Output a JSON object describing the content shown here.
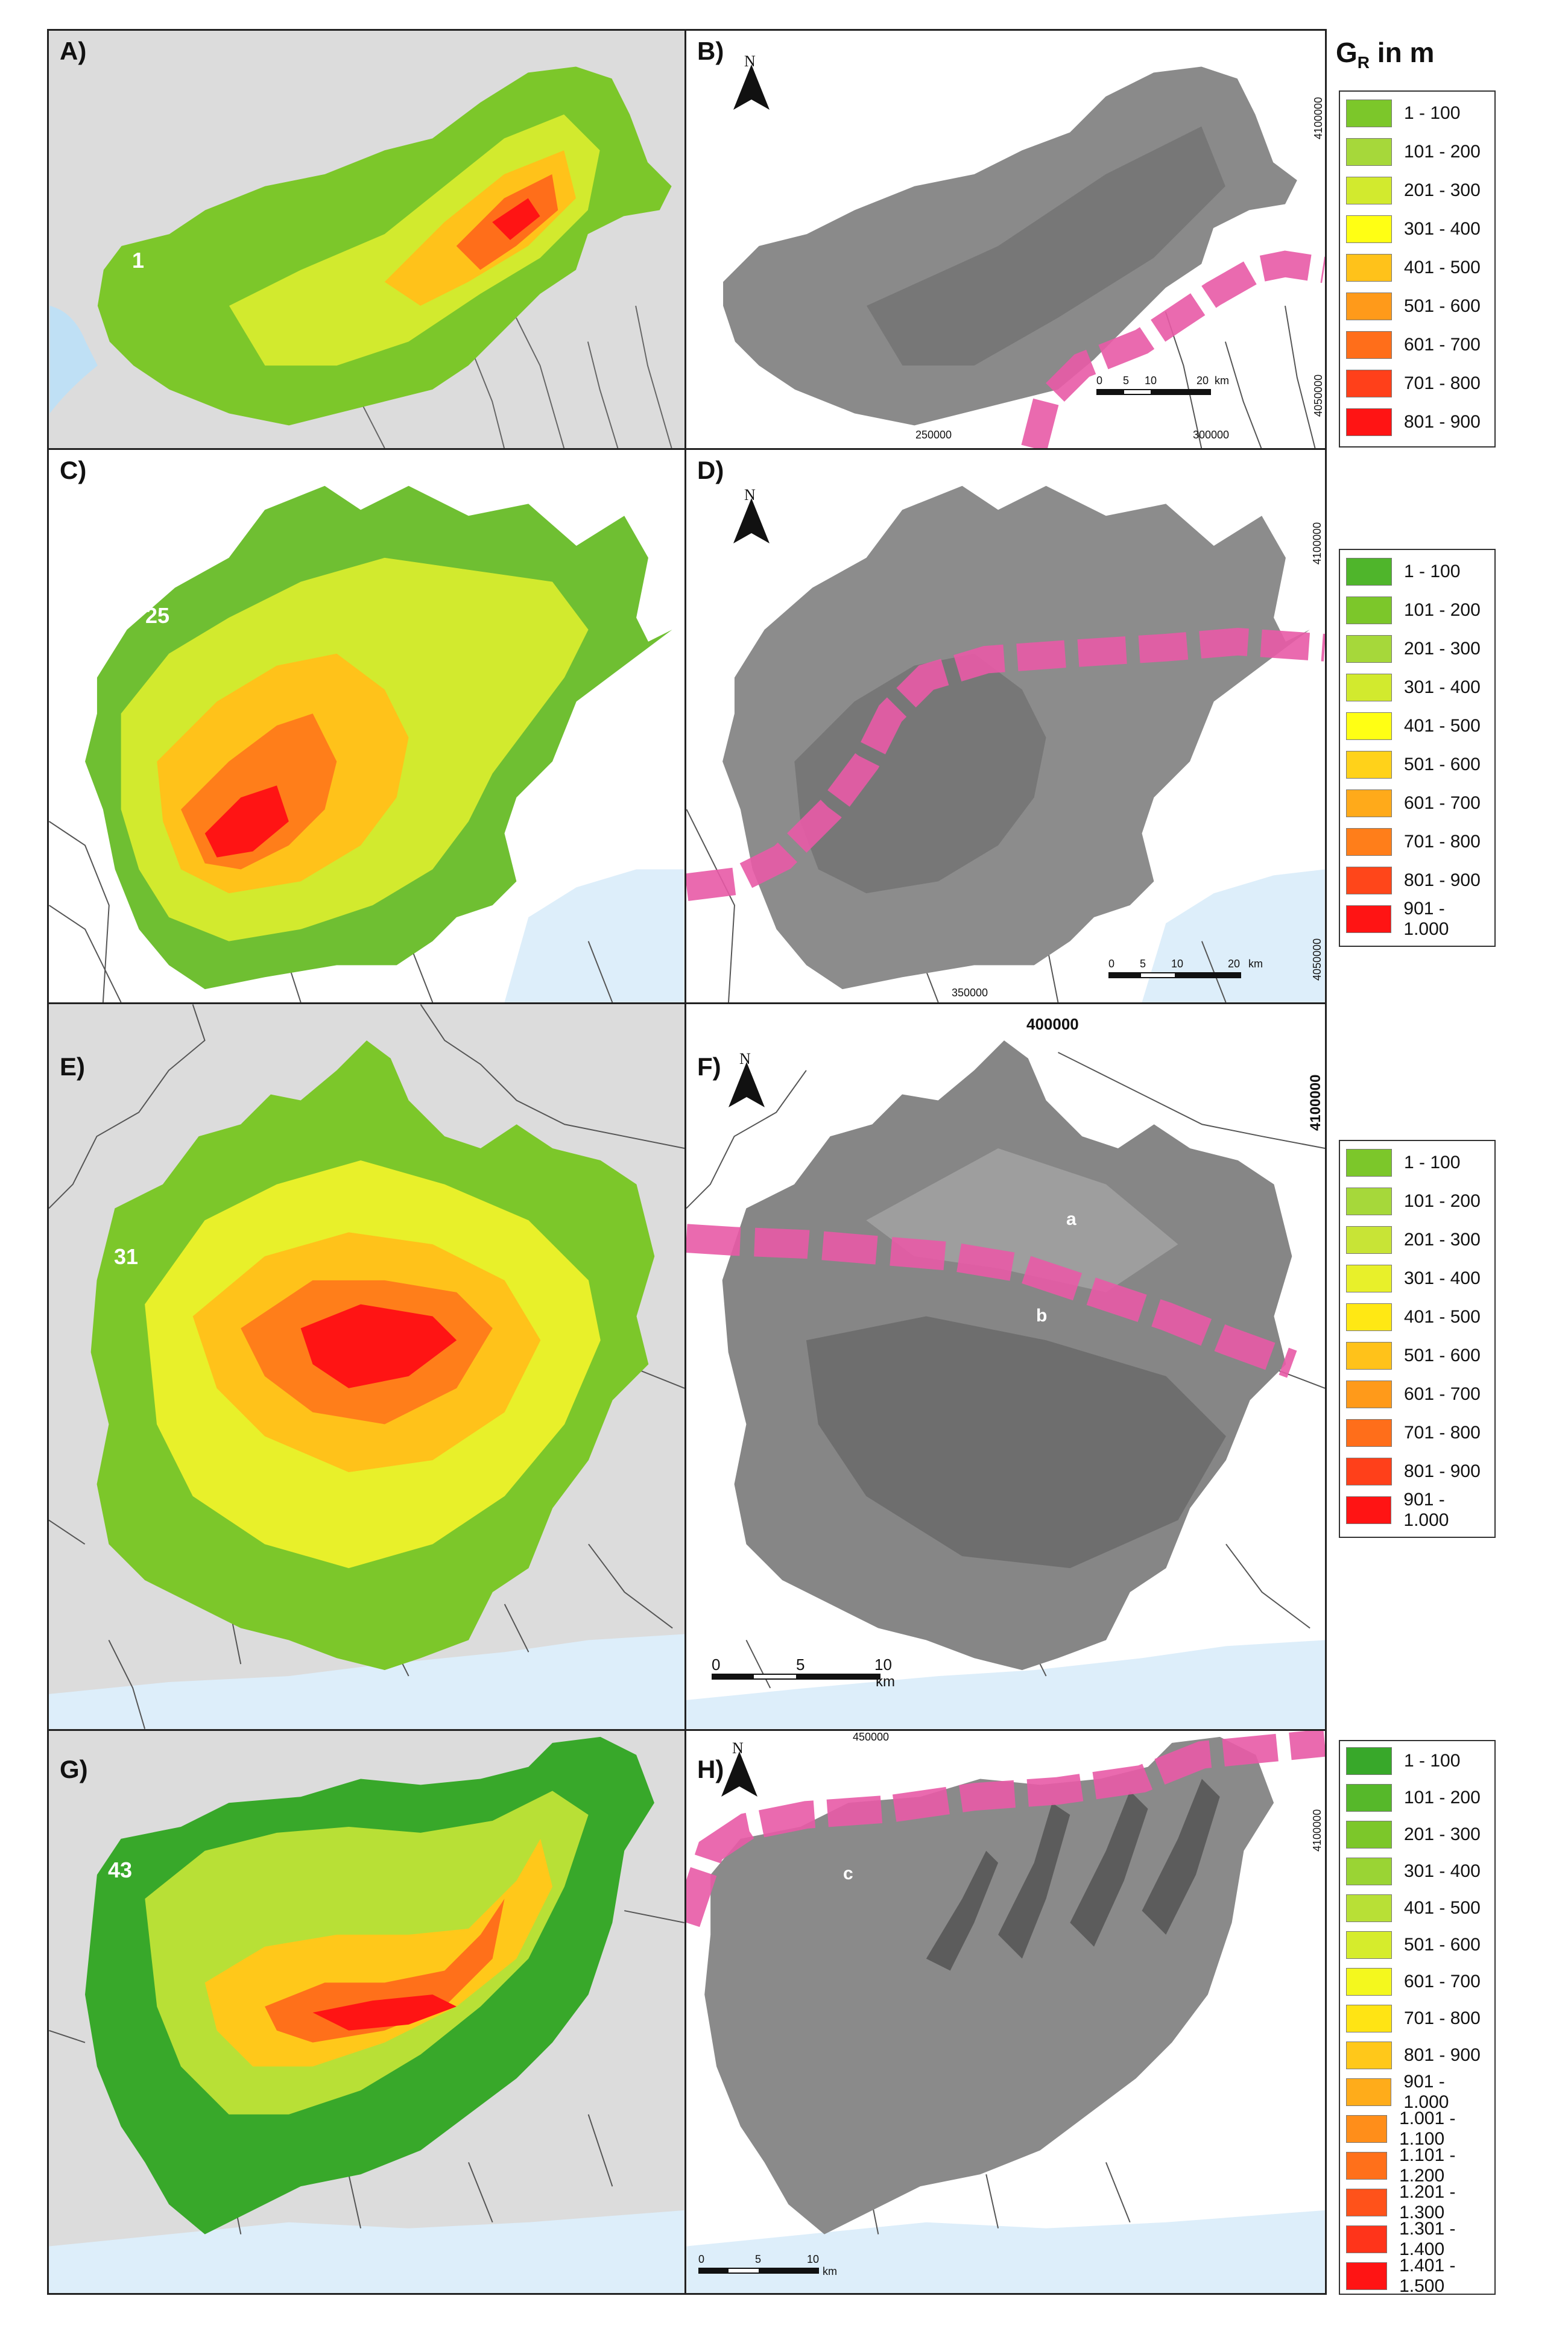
{
  "legend_title": "G",
  "legend_title_sub": "R",
  "legend_title_tail": " in m",
  "panels": {
    "A": {
      "label": "A)",
      "basin_id": "1"
    },
    "B": {
      "label": "B)",
      "north": "N",
      "ticks_x": [
        "250000",
        "300000"
      ],
      "ticks_y": [
        "4100000",
        "4050000"
      ],
      "scale": [
        "0",
        "5",
        "10",
        "20"
      ],
      "scale_unit": "km"
    },
    "C": {
      "label": "C)",
      "basin_id": "25"
    },
    "D": {
      "label": "D)",
      "north": "N",
      "ticks_x": [
        "350000"
      ],
      "ticks_y": [
        "4100000",
        "4050000"
      ],
      "scale": [
        "0",
        "5",
        "10",
        "20"
      ],
      "scale_unit": "km"
    },
    "E": {
      "label": "E)",
      "basin_id": "31"
    },
    "F": {
      "label": "F)",
      "north": "N",
      "ticks_x": [
        "400000"
      ],
      "ticks_y": [
        "4100000"
      ],
      "scale": [
        "0",
        "5",
        "10"
      ],
      "scale_unit": "km",
      "letters": [
        "a",
        "b"
      ]
    },
    "G": {
      "label": "G)",
      "basin_id": "43"
    },
    "H": {
      "label": "H)",
      "north": "N",
      "ticks_x": [
        "450000"
      ],
      "ticks_y": [
        "4100000"
      ],
      "scale": [
        "0",
        "5",
        "10"
      ],
      "scale_unit": "km",
      "letters": [
        "c"
      ]
    }
  },
  "legends": [
    {
      "items": [
        {
          "label": "1 - 100",
          "color": "#7cc72a"
        },
        {
          "label": "101 - 200",
          "color": "#a6d83a"
        },
        {
          "label": "201 - 300",
          "color": "#d2ea2e"
        },
        {
          "label": "301 - 400",
          "color": "#ffff14"
        },
        {
          "label": "401 - 500",
          "color": "#ffc21a"
        },
        {
          "label": "501 - 600",
          "color": "#ff9a1a"
        },
        {
          "label": "601 - 700",
          "color": "#ff6e1a"
        },
        {
          "label": "701 - 800",
          "color": "#ff401a"
        },
        {
          "label": "801 - 900",
          "color": "#ff1414"
        }
      ]
    },
    {
      "items": [
        {
          "label": "1 - 100",
          "color": "#4fb52b"
        },
        {
          "label": "101 - 200",
          "color": "#7cc72a"
        },
        {
          "label": "201 - 300",
          "color": "#a6d83a"
        },
        {
          "label": "301 - 400",
          "color": "#d2ea2e"
        },
        {
          "label": "401 - 500",
          "color": "#ffff14"
        },
        {
          "label": "501 - 600",
          "color": "#ffd21a"
        },
        {
          "label": "601 - 700",
          "color": "#ffaa1a"
        },
        {
          "label": "701 - 800",
          "color": "#ff7e1a"
        },
        {
          "label": "801 - 900",
          "color": "#ff461a"
        },
        {
          "label": "901 - 1.000",
          "color": "#ff1414"
        }
      ]
    },
    {
      "items": [
        {
          "label": "1 - 100",
          "color": "#7cc72a"
        },
        {
          "label": "101 - 200",
          "color": "#a6d83a"
        },
        {
          "label": "201 - 300",
          "color": "#c8e436"
        },
        {
          "label": "301 - 400",
          "color": "#e8f02a"
        },
        {
          "label": "401 - 500",
          "color": "#ffe814"
        },
        {
          "label": "501 - 600",
          "color": "#ffc21a"
        },
        {
          "label": "601 - 700",
          "color": "#ff9a1a"
        },
        {
          "label": "701 - 800",
          "color": "#ff6e1a"
        },
        {
          "label": "801 - 900",
          "color": "#ff401a"
        },
        {
          "label": "901 - 1.000",
          "color": "#ff1414"
        }
      ]
    },
    {
      "items": [
        {
          "label": "1 - 100",
          "color": "#38a82a"
        },
        {
          "label": "101 - 200",
          "color": "#56b82a"
        },
        {
          "label": "201 - 300",
          "color": "#7cc72a"
        },
        {
          "label": "301 - 400",
          "color": "#9ad434"
        },
        {
          "label": "401 - 500",
          "color": "#b8e036"
        },
        {
          "label": "501 - 600",
          "color": "#d6ec2c"
        },
        {
          "label": "601 - 700",
          "color": "#f4f81e"
        },
        {
          "label": "701 - 800",
          "color": "#ffe414"
        },
        {
          "label": "801 - 900",
          "color": "#ffc81a"
        },
        {
          "label": "901 - 1.000",
          "color": "#ffac1a"
        },
        {
          "label": "1.001 - 1.100",
          "color": "#ff8e1a"
        },
        {
          "label": "1.101 - 1.200",
          "color": "#ff701a"
        },
        {
          "label": "1.201 - 1.300",
          "color": "#ff521a"
        },
        {
          "label": "1.301 - 1.400",
          "color": "#ff341a"
        },
        {
          "label": "1.401 - 1.500",
          "color": "#ff1414"
        }
      ]
    }
  ]
}
